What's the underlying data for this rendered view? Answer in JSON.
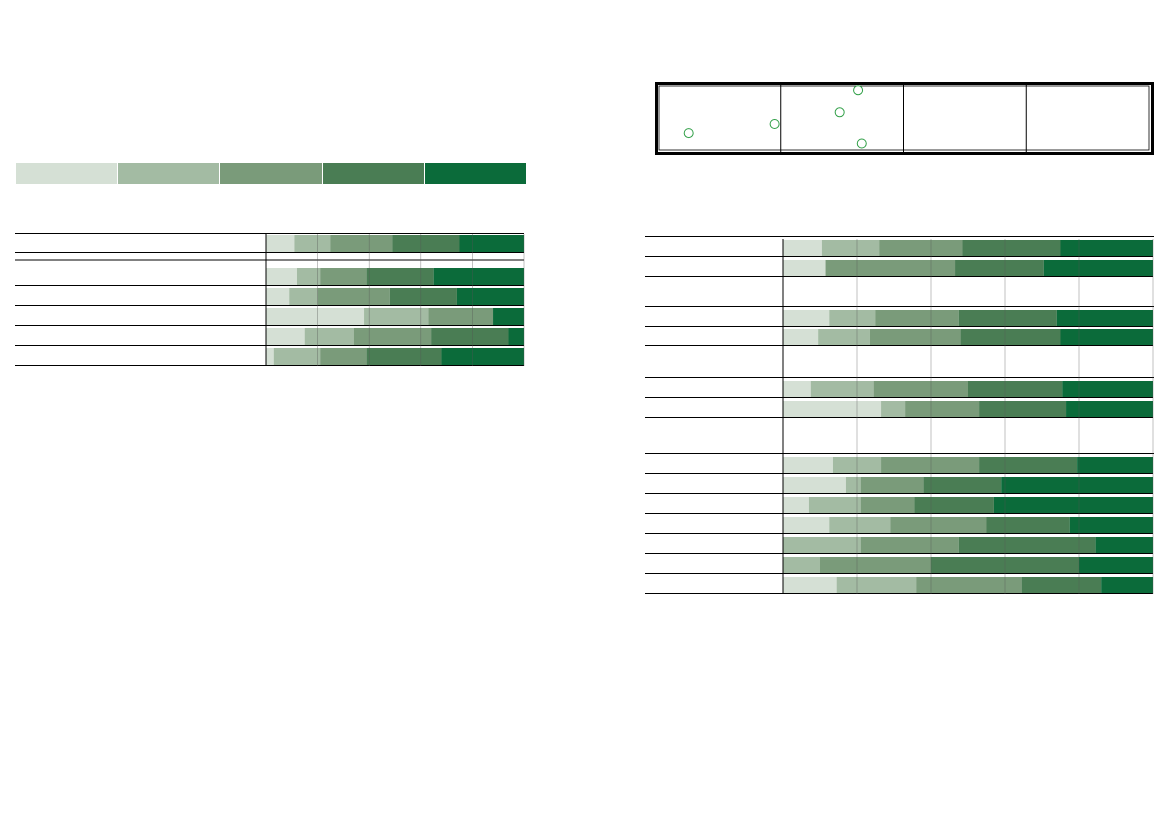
{
  "colors": {
    "scale": [
      "#d5e0d5",
      "#a3bba3",
      "#7a9b7a",
      "#4a7d54",
      "#0b6b3a"
    ],
    "marker_stroke": "#2e9e45",
    "rule": "#000000",
    "tick": "#555555"
  },
  "legend": {
    "labels": [
      "",
      "",
      "",
      "",
      ""
    ]
  },
  "chart_data": [
    {
      "type": "bar",
      "stacked": true,
      "orientation": "horizontal",
      "percent": true,
      "xlim": [
        0,
        100
      ],
      "grid": false,
      "categories": [
        "",
        "",
        "",
        "",
        "",
        ""
      ],
      "series": [
        {
          "values": [
            11,
            12,
            9,
            38,
            15,
            3
          ]
        },
        {
          "values": [
            14,
            9,
            11,
            25,
            19,
            18
          ]
        },
        {
          "values": [
            24,
            18,
            28,
            25,
            30,
            18
          ]
        },
        {
          "values": [
            26,
            26,
            26,
            0,
            30,
            29
          ]
        },
        {
          "values": [
            25,
            35,
            26,
            12,
            6,
            32
          ]
        }
      ]
    },
    {
      "type": "bar",
      "stacked": true,
      "orientation": "horizontal",
      "percent": true,
      "xlim": [
        0,
        100
      ],
      "grid": false,
      "groups": [
        {
          "categories": [
            "",
            ""
          ]
        },
        {
          "categories": [
            "",
            ""
          ]
        },
        {
          "categories": [
            "",
            ""
          ]
        },
        {
          "categories": [
            "",
            "",
            "",
            "",
            "",
            "",
            ""
          ]
        }
      ],
      "series": [
        {
          "values": [
            10.5,
            11.5,
            12.5,
            9.5,
            7.5,
            26.5,
            13.5,
            17,
            7,
            12.5,
            0,
            0,
            14.5
          ]
        },
        {
          "values": [
            15.5,
            0,
            12.5,
            14,
            17,
            6.5,
            13,
            4,
            14,
            16.5,
            21,
            10,
            21.5
          ]
        },
        {
          "values": [
            22.5,
            35,
            22.5,
            24.5,
            25.5,
            20,
            26.5,
            17,
            14.5,
            26,
            26.5,
            30,
            28.5
          ]
        },
        {
          "values": [
            26.5,
            24,
            26.5,
            27,
            25.5,
            23.5,
            26.5,
            21,
            21.5,
            22.5,
            37,
            40,
            21.5
          ]
        },
        {
          "values": [
            25,
            29.5,
            26,
            25,
            24.5,
            23.5,
            20.5,
            41,
            43,
            22.5,
            15.5,
            20,
            14
          ]
        }
      ]
    },
    {
      "type": "scatter",
      "grid": false,
      "columns": 4,
      "xlim": [
        0,
        4
      ],
      "ylim": [
        0,
        1
      ],
      "points": [
        {
          "x": 0.25,
          "y": 0.26
        },
        {
          "x": 0.95,
          "y": 0.4
        },
        {
          "x": 1.48,
          "y": 0.58
        },
        {
          "x": 1.63,
          "y": 0.92
        },
        {
          "x": 1.66,
          "y": 0.1
        }
      ]
    }
  ]
}
